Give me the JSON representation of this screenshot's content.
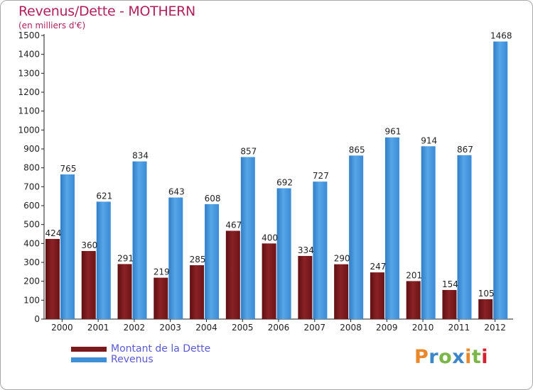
{
  "chart_data": {
    "type": "bar",
    "title": "Revenus/Dette - MOTHERN",
    "subtitle": "(en milliers d'€)",
    "categories": [
      "2000",
      "2001",
      "2002",
      "2003",
      "2004",
      "2005",
      "2006",
      "2007",
      "2008",
      "2009",
      "2010",
      "2011",
      "2012"
    ],
    "series": [
      {
        "name": "Montant de la Dette",
        "color": "#7a1a1c",
        "values": [
          424,
          360,
          291,
          219,
          285,
          467,
          400,
          334,
          290,
          247,
          201,
          154,
          105
        ]
      },
      {
        "name": "Revenus",
        "color": "#3d8fd8",
        "values": [
          765,
          621,
          834,
          643,
          608,
          857,
          692,
          727,
          865,
          961,
          914,
          867,
          1468
        ]
      }
    ],
    "ylim": [
      0,
      1500
    ],
    "yticks": [
      0,
      100,
      200,
      300,
      400,
      500,
      600,
      700,
      800,
      900,
      1000,
      1100,
      1200,
      1300,
      1400,
      1500
    ],
    "grid": false,
    "legend": "bottom-left"
  },
  "logo": {
    "text": "Proxiti",
    "colors": [
      "#e9882b",
      "#3b87c9",
      "#7ab648",
      "#3b87c9",
      "#e9882b",
      "#7ab648",
      "#d4212f"
    ]
  }
}
